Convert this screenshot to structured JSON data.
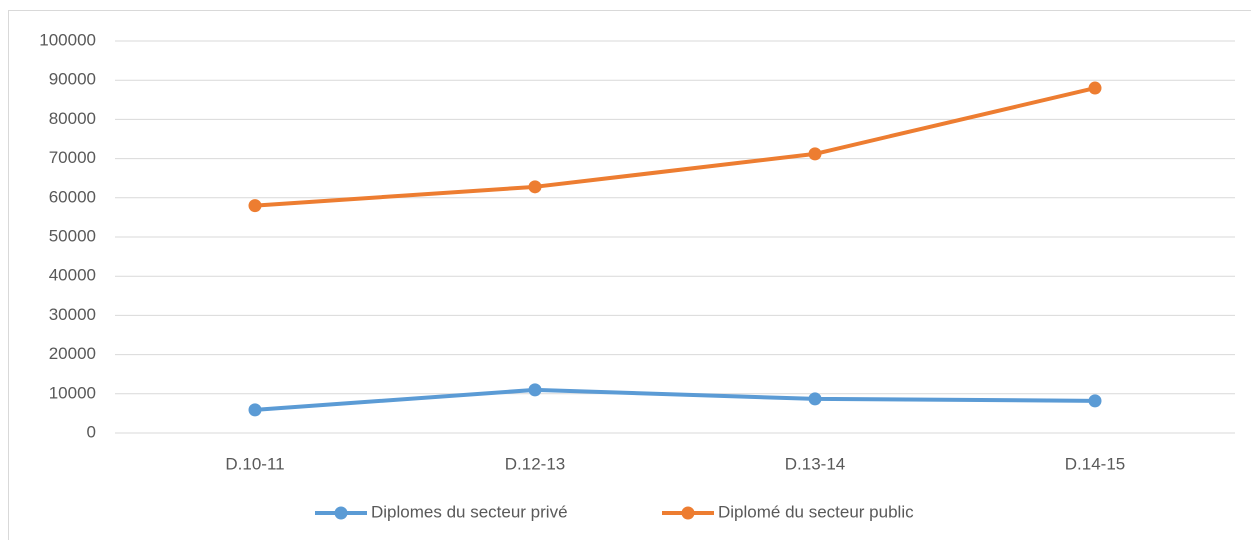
{
  "chart_data": {
    "type": "line",
    "categories": [
      "D.10-11",
      "D.12-13",
      "D.13-14",
      "D.14-15"
    ],
    "series": [
      {
        "name": "Diplomes du secteur privé",
        "color": "#5b9bd5",
        "values": [
          5900,
          11000,
          8700,
          8200
        ]
      },
      {
        "name": "Diplomé du secteur public",
        "color": "#ed7d31",
        "values": [
          58000,
          62800,
          71200,
          88000
        ]
      }
    ],
    "ylim": [
      0,
      100000
    ],
    "yticks": [
      0,
      10000,
      20000,
      30000,
      40000,
      50000,
      60000,
      70000,
      80000,
      90000,
      100000
    ],
    "grid": true,
    "legend": "bottom"
  }
}
